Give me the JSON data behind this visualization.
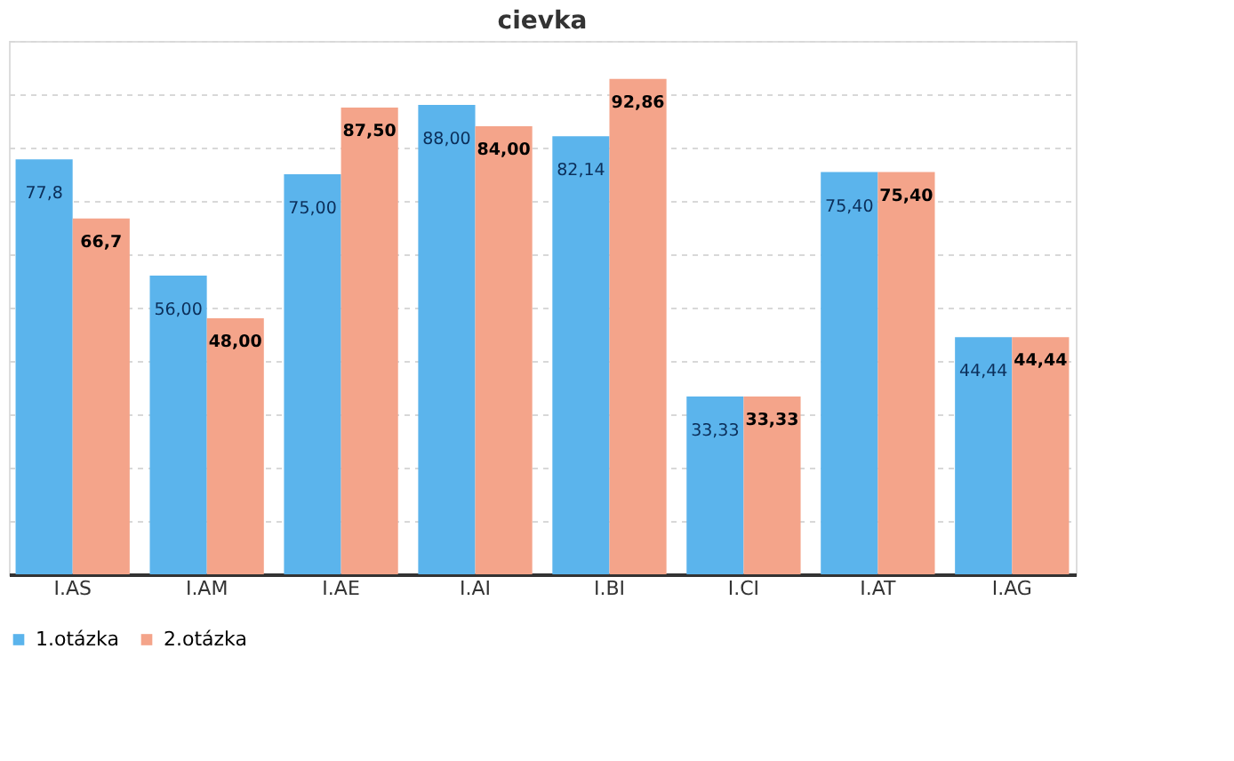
{
  "chart_data": {
    "type": "bar",
    "title": "cievka",
    "categories": [
      "I.AS",
      "I.AM",
      "I.AE",
      "I.AI",
      "I.BI",
      "I.CI",
      "I.AT",
      "I.AG"
    ],
    "series": [
      {
        "name": "1.otázka",
        "color": "#5bb4ec",
        "values": [
          77.8,
          56.0,
          75.0,
          88.0,
          82.14,
          33.33,
          75.4,
          44.44
        ],
        "value_labels": [
          "77,8",
          "56,00",
          "75,00",
          "88,00",
          "82,14",
          "33,33",
          "75,40",
          "44,44"
        ]
      },
      {
        "name": "2.otázka",
        "color": "#f4a48a",
        "values": [
          66.7,
          48.0,
          87.5,
          84.0,
          92.86,
          33.33,
          75.4,
          44.44
        ],
        "value_labels": [
          "66,7",
          "48,00",
          "87,50",
          "84,00",
          "92,86",
          "33,33",
          "75,40",
          "44,44"
        ]
      }
    ],
    "ylim": [
      0,
      100
    ],
    "grid": "y",
    "legend": "bottom",
    "tick_labels": "x"
  }
}
